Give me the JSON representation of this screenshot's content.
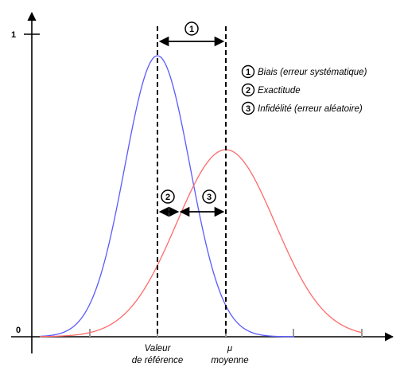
{
  "axis": {
    "y_top_label": "1",
    "y_origin_label": "0"
  },
  "markers": {
    "m1": "1",
    "m2": "2",
    "m3": "3"
  },
  "legend": [
    {
      "num": "1",
      "text": "Biais (erreur systématique)"
    },
    {
      "num": "2",
      "text": "Exactitude"
    },
    {
      "num": "3",
      "text": "Infidélité (erreur aléatoire)"
    }
  ],
  "xlabels": {
    "ref_line1": "Valeur",
    "ref_line2": "de référence",
    "mu_line1": "μ",
    "mu_line2": "moyenne"
  },
  "colors": {
    "reference_curve": "#5a5aff",
    "mean_curve": "#ff6a6a",
    "ticks": "#9a9a9a"
  }
}
